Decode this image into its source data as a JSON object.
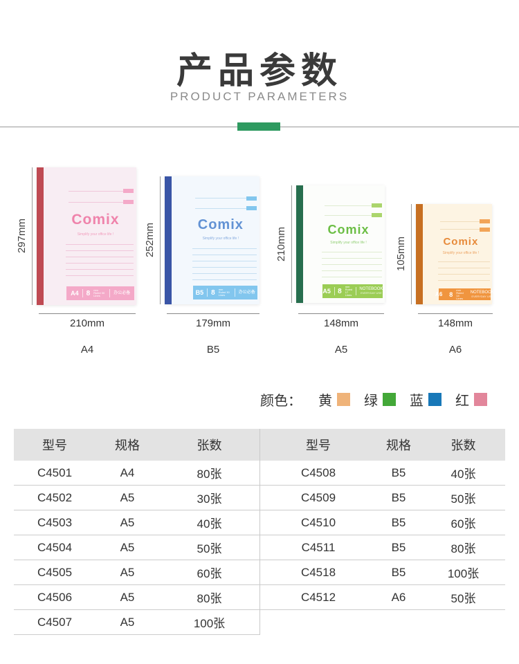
{
  "header": {
    "title": "产品参数",
    "subtitle": "PRODUCT PARAMETERS",
    "accent_color": "#2e9a60"
  },
  "products": [
    {
      "size": "A4",
      "height_label": "297mm",
      "width_label": "210mm",
      "logo": "Comix",
      "tagline": "Simplify your office life !",
      "bar": {
        "size": "A4",
        "count": "8",
        "note": "mm Ruled 30 Lines",
        "right": "办公必备",
        "right_sub": ""
      },
      "colors": {
        "spine": "#bf4a53",
        "cover": "#f8edf3",
        "line": "#f0c6da",
        "bar": "#f4a9c8",
        "logo": "#ef83ab",
        "tab": "#f4a9c8"
      }
    },
    {
      "size": "B5",
      "height_label": "252mm",
      "width_label": "179mm",
      "logo": "Comix",
      "tagline": "Simplify your office life !",
      "bar": {
        "size": "B5",
        "count": "8",
        "note": "mm Ruled 30 Lines",
        "right": "办公必备",
        "right_sub": ""
      },
      "colors": {
        "spine": "#3a55a6",
        "cover": "#f3f8fd",
        "line": "#c5dff2",
        "bar": "#82c6ee",
        "logo": "#6292d4",
        "tab": "#82c6ee"
      }
    },
    {
      "size": "A5",
      "height_label": "210mm",
      "width_label": "148mm",
      "logo": "Comix",
      "tagline": "Simplify your office life !",
      "bar": {
        "size": "A5",
        "count": "8",
        "note": "mm Ruled 17 Lines",
        "right": "NOTEBOOK",
        "right_sub": "EVERYDAY USE"
      },
      "colors": {
        "spine": "#276e4e",
        "cover": "#fcfdfb",
        "line": "#dfecd0",
        "bar": "#9bcd55",
        "logo": "#6cbe45",
        "tab": "#abd56c"
      }
    },
    {
      "size": "A6",
      "height_label": "105mm",
      "width_label": "148mm",
      "logo": "Comix",
      "tagline": "Simplify your office life !",
      "bar": {
        "size": "A6",
        "count": "8",
        "note": "mm Ruled 14 Lines",
        "right": "NOTEBOOK",
        "right_sub": "EVERYDAY USE"
      },
      "colors": {
        "spine": "#c76f21",
        "cover": "#fdf4e3",
        "line": "#f1dcba",
        "bar": "#f0953f",
        "logo": "#e78a3a",
        "tab": "#f2a457"
      }
    }
  ],
  "legend": {
    "label": "颜色：",
    "items": [
      {
        "name": "黄",
        "color": "#efb379"
      },
      {
        "name": "绿",
        "color": "#43a838"
      },
      {
        "name": "蓝",
        "color": "#1878b8"
      },
      {
        "name": "红",
        "color": "#e2869b"
      }
    ]
  },
  "table": {
    "headers": [
      "型号",
      "规格",
      "张数"
    ],
    "left_rows": [
      [
        "C4501",
        "A4",
        "80张"
      ],
      [
        "C4502",
        "A5",
        "30张"
      ],
      [
        "C4503",
        "A5",
        "40张"
      ],
      [
        "C4504",
        "A5",
        "50张"
      ],
      [
        "C4505",
        "A5",
        "60张"
      ],
      [
        "C4506",
        "A5",
        "80张"
      ],
      [
        "C4507",
        "A5",
        "100张"
      ]
    ],
    "right_rows": [
      [
        "C4508",
        "B5",
        "40张"
      ],
      [
        "C4509",
        "B5",
        "50张"
      ],
      [
        "C4510",
        "B5",
        "60张"
      ],
      [
        "C4511",
        "B5",
        "80张"
      ],
      [
        "C4518",
        "B5",
        "100张"
      ],
      [
        "C4512",
        "A6",
        "50张"
      ]
    ]
  }
}
